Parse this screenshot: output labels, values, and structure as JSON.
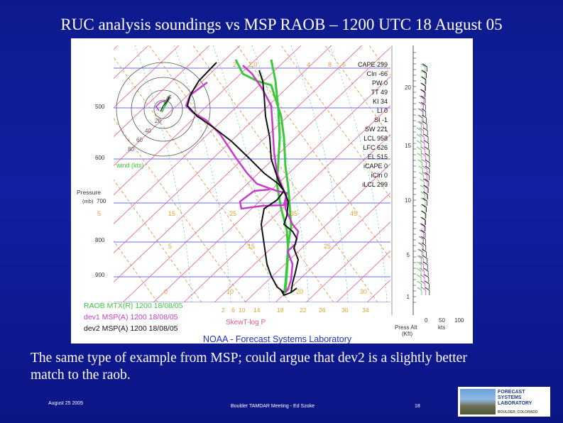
{
  "slide": {
    "title": "RUC analysis soundings vs MSP RAOB – 1200 UTC 18 August 05",
    "caption": "The same type of example from MSP; could argue that dev2 is a slightly better match to the raob.",
    "footer_date": "August 25 2005",
    "footer_event": "Boulder TAMDAR Meeting - Ed Szoke",
    "footer_page": "18"
  },
  "logo": {
    "line1": "FORECAST",
    "line2": "SYSTEMS",
    "line3": "LABORATORY",
    "line4": "BOULDER, COLORADO"
  },
  "figure": {
    "pressure_title": "Pressure",
    "pressure_unit": "(mb)",
    "pressure_labels": [
      "500",
      "600",
      "700",
      "800",
      "900"
    ],
    "skew_temp_labels": [
      "5",
      "15",
      "25",
      "35",
      "45",
      "5",
      "15",
      "25",
      "0",
      "10",
      "20",
      "30"
    ],
    "mixing_ratio_labels": [
      "2",
      "2.0",
      "4",
      "8",
      "6"
    ],
    "bottom_axis_labels": [
      "2",
      "6",
      "10",
      "14",
      "18",
      "22",
      "26",
      "30",
      "34"
    ],
    "skewt_label": "SkewT-log P",
    "hodograph_rings": [
      "20",
      "40",
      "60",
      "80"
    ],
    "wind_label": "wind (kts)",
    "legend": [
      {
        "label": "RAOB MTX(R) 1200 18/08/05",
        "color": "#3cc83c"
      },
      {
        "label": "dev1 MSP(A) 1200 18/08/05",
        "color": "#c83cc8"
      },
      {
        "label": "dev2 MSP(A) 1200 18/08/05",
        "color": "#111111"
      }
    ],
    "noaa_label": "NOAA - Forecast Systems Laboratory",
    "stats": [
      "CAPE 299",
      "CIn -66",
      "PW 0",
      "TT 49",
      "KI 34",
      "LI 0",
      "SI -1",
      "SW 221",
      "LCL 958",
      "LFC 626",
      "EL 515",
      "iCAPE 0",
      "iCIn 0",
      "iLCL 299"
    ],
    "alt_labels": [
      "20",
      "15",
      "10",
      "5",
      "1"
    ],
    "alt_title_1": "Press Alt",
    "alt_title_2": "(Kft)",
    "kts_labels": [
      "0",
      "50",
      "100"
    ],
    "kts_title": "kts"
  },
  "colors": {
    "background": "#1020a0",
    "raob": "#3cc83c",
    "dev1": "#c83cc8",
    "dev2": "#111111",
    "isotherm": "#e05a8c",
    "dry_adiabat": "#d89030",
    "moist_adiabat": "#3cb4b4",
    "isobar": "#6a6aff",
    "noaa": "#2030c0"
  }
}
